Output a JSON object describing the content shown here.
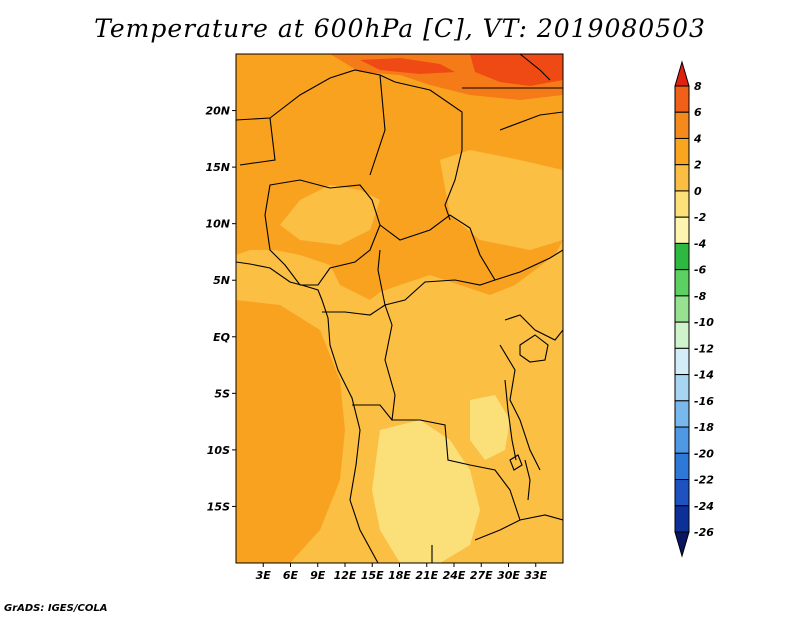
{
  "title": "Temperature at 600hPa [C], VT: 2019080503",
  "credit": "GrADS: IGES/COLA",
  "map": {
    "lon_range": [
      0,
      36
    ],
    "lat_range": [
      -20,
      25
    ],
    "x_ticks": [
      "3E",
      "6E",
      "9E",
      "12E",
      "15E",
      "18E",
      "21E",
      "24E",
      "27E",
      "30E",
      "33E"
    ],
    "y_ticks": [
      "20N",
      "15N",
      "10N",
      "5N",
      "EQ",
      "5S",
      "10S",
      "15S"
    ],
    "field_colors": {
      "minus2_0": "#fbe07a",
      "0_2": "#fbbf44",
      "2_4": "#f9a21f",
      "4_6": "#f57a18",
      "6_8": "#ef4a13"
    }
  },
  "colorbar": {
    "labels": [
      "8",
      "6",
      "4",
      "2",
      "0",
      "-2",
      "-4",
      "-6",
      "-8",
      "-10",
      "-12",
      "-14",
      "-16",
      "-18",
      "-20",
      "-22",
      "-24",
      "-26"
    ],
    "colors": [
      "#e02010",
      "#f06018",
      "#f58a1c",
      "#f9a51f",
      "#fbbe45",
      "#fce07a",
      "#fdf4b0",
      "#2eb840",
      "#5cd060",
      "#96e290",
      "#d0f3cc",
      "#d2ecf8",
      "#a8d6f2",
      "#78b8ec",
      "#4f98e4",
      "#2e78d8",
      "#1d52c0",
      "#0c2f98",
      "#0a1460"
    ]
  }
}
